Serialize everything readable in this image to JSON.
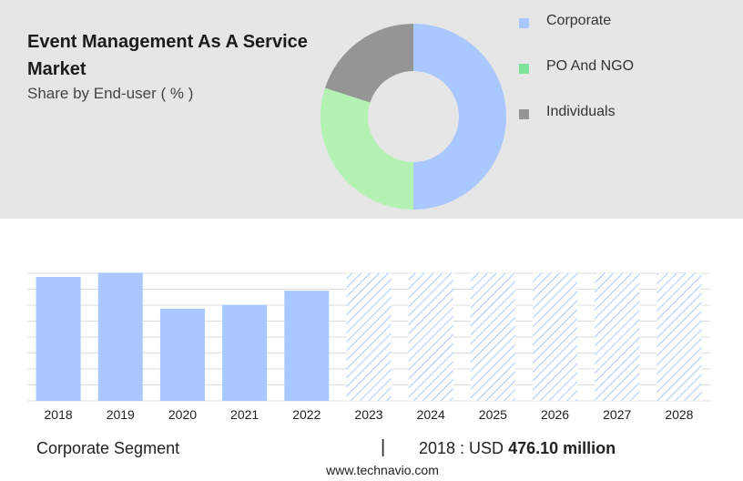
{
  "header": {
    "title": "Event Management As A Service Market",
    "subtitle": "Share by End-user ( % )"
  },
  "donut": {
    "type": "pie",
    "segments": [
      {
        "label": "Corporate",
        "value": 50,
        "color": "#a8c8ff"
      },
      {
        "label": "PO And NGO",
        "value": 30,
        "color": "#b3f2b3"
      },
      {
        "label": "Individuals",
        "value": 20,
        "color": "#959595"
      }
    ]
  },
  "legend": {
    "items": [
      {
        "label": "Corporate",
        "color": "#a8c8ff"
      },
      {
        "label": "PO And NGO",
        "color": "#7ee39a"
      },
      {
        "label": "Individuals",
        "color": "#959595"
      }
    ]
  },
  "chart_data": {
    "type": "bar",
    "categories": [
      "2018",
      "2019",
      "2020",
      "2021",
      "2022",
      "2023",
      "2024",
      "2025",
      "2026",
      "2027",
      "2028"
    ],
    "values": [
      476.1,
      492,
      354,
      368,
      423,
      null,
      null,
      null,
      null,
      null,
      null
    ],
    "forecast_categories": [
      "2023",
      "2024",
      "2025",
      "2026",
      "2027",
      "2028"
    ],
    "ylim": [
      0,
      490
    ],
    "grid": true,
    "bar_color": "#a8c8ff",
    "forecast_style": "hatched"
  },
  "footer": {
    "segment_label": "Corporate Segment",
    "separator": "|",
    "year_text": "2018 : USD ",
    "value_text": "476.10 million",
    "source": "www.technavio.com"
  }
}
